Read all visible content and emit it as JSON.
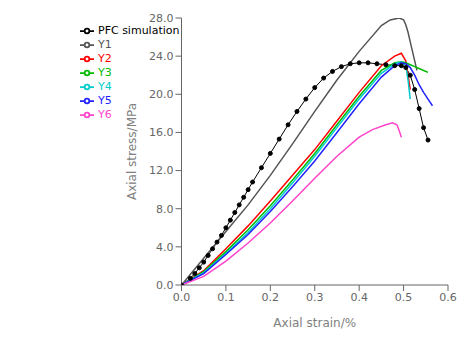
{
  "chart_data": {
    "type": "line",
    "title": "",
    "xlabel": "Axial strain/%",
    "ylabel": "Axial stress/MPa",
    "xlim": [
      0.0,
      0.6
    ],
    "ylim": [
      0.0,
      28.0
    ],
    "xticks": [
      {
        "value": 0,
        "label": "0.0"
      },
      0.1,
      0.2,
      0.3,
      0.4,
      0.5,
      0.6
    ],
    "yticks": [
      {
        "value": 0,
        "label": "0.0"
      },
      {
        "value": 4,
        "label": "4.0"
      },
      {
        "value": 8,
        "label": "8.0"
      },
      {
        "value": 12,
        "label": "12.0"
      },
      {
        "value": 16,
        "label": "16.0"
      },
      {
        "value": 20,
        "label": "20.0"
      },
      {
        "value": 24,
        "label": "24.0"
      },
      {
        "value": 28,
        "label": "28.0"
      }
    ],
    "grid": false,
    "legend": "upper left",
    "series": [
      {
        "name": "PFC simulation",
        "color": "#000000",
        "marker": "circle",
        "x": [
          0.0,
          0.02,
          0.03,
          0.04,
          0.05,
          0.06,
          0.07,
          0.08,
          0.09,
          0.1,
          0.11,
          0.12,
          0.13,
          0.14,
          0.15,
          0.16,
          0.18,
          0.2,
          0.22,
          0.24,
          0.26,
          0.28,
          0.3,
          0.32,
          0.34,
          0.36,
          0.38,
          0.4,
          0.42,
          0.44,
          0.46,
          0.48,
          0.495,
          0.505,
          0.515,
          0.525,
          0.535,
          0.545,
          0.555
        ],
        "values": [
          0.0,
          0.7,
          1.2,
          1.8,
          2.4,
          3.1,
          3.8,
          4.5,
          5.2,
          6.0,
          6.8,
          7.6,
          8.4,
          9.2,
          10.0,
          10.8,
          12.3,
          13.8,
          15.3,
          16.8,
          18.2,
          19.5,
          20.7,
          21.7,
          22.4,
          22.9,
          23.2,
          23.3,
          23.3,
          23.2,
          23.1,
          23.0,
          23.0,
          22.8,
          22.0,
          20.5,
          18.5,
          16.5,
          15.2
        ]
      },
      {
        "name": "Y1",
        "color": "#555555",
        "x": [
          0.0,
          0.05,
          0.1,
          0.15,
          0.2,
          0.25,
          0.3,
          0.35,
          0.4,
          0.45,
          0.47,
          0.49,
          0.5,
          0.505,
          0.51,
          0.515,
          0.52,
          0.525,
          0.53
        ],
        "values": [
          0.0,
          2.8,
          5.6,
          8.4,
          11.5,
          14.8,
          18.2,
          21.5,
          24.5,
          27.2,
          27.8,
          28.0,
          27.8,
          27.3,
          26.5,
          25.5,
          24.5,
          23.5,
          22.5
        ]
      },
      {
        "name": "Y2",
        "color": "#ff0000",
        "x": [
          0.0,
          0.05,
          0.1,
          0.15,
          0.2,
          0.25,
          0.3,
          0.35,
          0.4,
          0.45,
          0.48,
          0.495,
          0.505,
          0.51,
          0.515
        ],
        "values": [
          0.0,
          1.5,
          3.8,
          6.2,
          8.8,
          11.5,
          14.2,
          17.2,
          20.2,
          23.0,
          24.0,
          24.3,
          23.5,
          22.0,
          20.5
        ]
      },
      {
        "name": "Y3",
        "color": "#00bb00",
        "x": [
          0.0,
          0.05,
          0.1,
          0.15,
          0.2,
          0.25,
          0.3,
          0.35,
          0.4,
          0.45,
          0.48,
          0.495,
          0.505,
          0.515,
          0.525,
          0.535,
          0.545,
          0.555
        ],
        "values": [
          0.0,
          1.4,
          3.5,
          5.8,
          8.3,
          11.0,
          13.8,
          16.8,
          19.8,
          22.5,
          23.3,
          23.4,
          23.3,
          23.1,
          22.9,
          22.7,
          22.5,
          22.3
        ]
      },
      {
        "name": "Y4",
        "color": "#00cccc",
        "x": [
          0.0,
          0.05,
          0.1,
          0.15,
          0.2,
          0.25,
          0.3,
          0.35,
          0.4,
          0.45,
          0.48,
          0.495,
          0.505,
          0.51,
          0.515
        ],
        "values": [
          0.0,
          1.3,
          3.3,
          5.5,
          8.0,
          10.7,
          13.5,
          16.5,
          19.5,
          22.2,
          23.2,
          23.4,
          23.0,
          21.5,
          19.5
        ]
      },
      {
        "name": "Y5",
        "color": "#2222ff",
        "x": [
          0.0,
          0.05,
          0.1,
          0.15,
          0.2,
          0.25,
          0.3,
          0.35,
          0.4,
          0.45,
          0.48,
          0.495,
          0.505,
          0.515,
          0.525,
          0.535,
          0.545,
          0.555,
          0.565
        ],
        "values": [
          0.0,
          1.2,
          3.2,
          5.3,
          7.7,
          10.3,
          13.0,
          16.0,
          19.0,
          21.8,
          23.0,
          23.3,
          23.2,
          22.8,
          22.0,
          21.0,
          20.2,
          19.5,
          18.8
        ]
      },
      {
        "name": "Y6",
        "color": "#ff44cc",
        "x": [
          0.0,
          0.05,
          0.1,
          0.15,
          0.2,
          0.25,
          0.3,
          0.35,
          0.4,
          0.43,
          0.46,
          0.475,
          0.485,
          0.49,
          0.495
        ],
        "values": [
          0.0,
          0.9,
          2.5,
          4.4,
          6.5,
          8.8,
          11.2,
          13.5,
          15.5,
          16.3,
          16.8,
          17.0,
          16.8,
          16.2,
          15.5
        ]
      }
    ]
  }
}
